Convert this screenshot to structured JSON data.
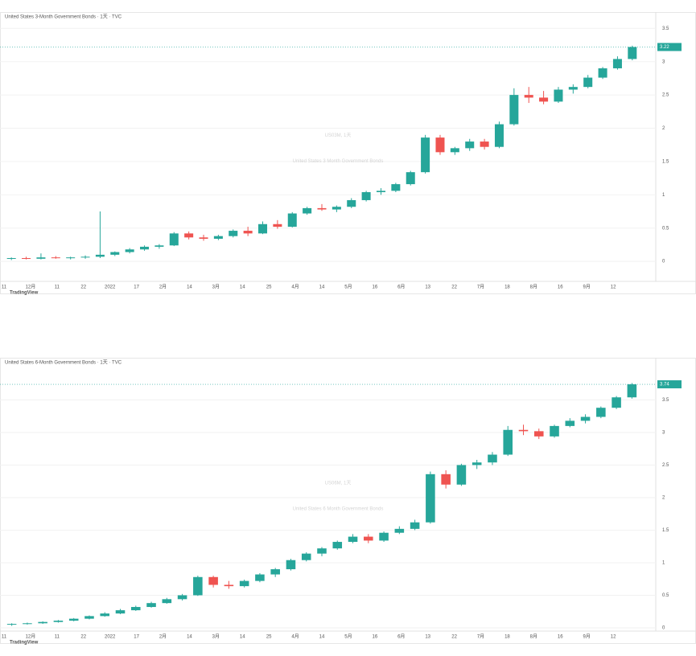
{
  "chart_data": [
    {
      "type": "candlestick",
      "title": "US03M, 1天",
      "subtitle": "United States 3 Month Government Bonds",
      "legend": "United States 3-Month Government Bonds · 1天 · TVC",
      "up_color": "#26a69a",
      "down_color": "#ef5350",
      "ylim": [
        -0.3,
        3.6
      ],
      "yticks": [
        0,
        0.5,
        1,
        1.5,
        2,
        2.5,
        3,
        3.5
      ],
      "x_labels": [
        "11",
        "12月",
        "11",
        "22",
        "2022",
        "17",
        "2月",
        "14",
        "3月",
        "14",
        "25",
        "4月",
        "14",
        "5月",
        "16",
        "6月",
        "13",
        "22",
        "7月",
        "18",
        "8月",
        "16",
        "9月",
        "12"
      ],
      "ohlc": [
        [
          0.04,
          0.06,
          0.02,
          0.05
        ],
        [
          0.05,
          0.07,
          0.03,
          0.04
        ],
        [
          0.04,
          0.12,
          0.03,
          0.06
        ],
        [
          0.06,
          0.08,
          0.04,
          0.05
        ],
        [
          0.05,
          0.07,
          0.03,
          0.06
        ],
        [
          0.06,
          0.09,
          0.04,
          0.07
        ],
        [
          0.07,
          0.75,
          0.05,
          0.1
        ],
        [
          0.1,
          0.15,
          0.08,
          0.14
        ],
        [
          0.14,
          0.2,
          0.12,
          0.18
        ],
        [
          0.18,
          0.24,
          0.16,
          0.22
        ],
        [
          0.22,
          0.26,
          0.19,
          0.24
        ],
        [
          0.24,
          0.44,
          0.23,
          0.42
        ],
        [
          0.42,
          0.45,
          0.33,
          0.36
        ],
        [
          0.36,
          0.4,
          0.31,
          0.34
        ],
        [
          0.34,
          0.4,
          0.32,
          0.38
        ],
        [
          0.38,
          0.48,
          0.36,
          0.46
        ],
        [
          0.46,
          0.52,
          0.38,
          0.42
        ],
        [
          0.42,
          0.6,
          0.41,
          0.56
        ],
        [
          0.56,
          0.62,
          0.49,
          0.52
        ],
        [
          0.52,
          0.74,
          0.51,
          0.72
        ],
        [
          0.72,
          0.82,
          0.7,
          0.8
        ],
        [
          0.8,
          0.86,
          0.76,
          0.78
        ],
        [
          0.78,
          0.84,
          0.74,
          0.82
        ],
        [
          0.82,
          0.95,
          0.8,
          0.92
        ],
        [
          0.92,
          1.06,
          0.9,
          1.04
        ],
        [
          1.04,
          1.1,
          1.0,
          1.06
        ],
        [
          1.06,
          1.18,
          1.04,
          1.16
        ],
        [
          1.16,
          1.36,
          1.14,
          1.34
        ],
        [
          1.34,
          1.9,
          1.32,
          1.86
        ],
        [
          1.86,
          1.9,
          1.6,
          1.64
        ],
        [
          1.64,
          1.72,
          1.6,
          1.7
        ],
        [
          1.7,
          1.84,
          1.66,
          1.8
        ],
        [
          1.8,
          1.84,
          1.68,
          1.72
        ],
        [
          1.72,
          2.1,
          1.7,
          2.06
        ],
        [
          2.06,
          2.6,
          2.04,
          2.5
        ],
        [
          2.5,
          2.62,
          2.38,
          2.46
        ],
        [
          2.46,
          2.56,
          2.36,
          2.4
        ],
        [
          2.4,
          2.62,
          2.38,
          2.58
        ],
        [
          2.58,
          2.66,
          2.52,
          2.62
        ],
        [
          2.62,
          2.8,
          2.6,
          2.76
        ],
        [
          2.76,
          2.92,
          2.74,
          2.9
        ],
        [
          2.9,
          3.08,
          2.88,
          3.04
        ],
        [
          3.04,
          3.24,
          3.02,
          3.22
        ]
      ],
      "brand": "TradingView"
    },
    {
      "type": "candlestick",
      "title": "US06M, 1天",
      "subtitle": "United States 6 Month Government Bonds",
      "legend": "United States 6-Month Government Bonds · 1天 · TVC",
      "up_color": "#26a69a",
      "down_color": "#ef5350",
      "ylim": [
        -0.05,
        4.0
      ],
      "yticks": [
        0,
        0.5,
        1,
        1.5,
        2,
        2.5,
        3,
        3.5
      ],
      "x_labels": [
        "11",
        "12月",
        "11",
        "22",
        "2022",
        "17",
        "2月",
        "14",
        "3月",
        "14",
        "25",
        "4月",
        "14",
        "5月",
        "16",
        "6月",
        "13",
        "22",
        "7月",
        "18",
        "8月",
        "16",
        "9月",
        "12"
      ],
      "ohlc": [
        [
          0.05,
          0.07,
          0.03,
          0.06
        ],
        [
          0.06,
          0.08,
          0.05,
          0.07
        ],
        [
          0.07,
          0.1,
          0.06,
          0.09
        ],
        [
          0.09,
          0.12,
          0.08,
          0.11
        ],
        [
          0.11,
          0.15,
          0.1,
          0.14
        ],
        [
          0.14,
          0.19,
          0.13,
          0.18
        ],
        [
          0.18,
          0.24,
          0.17,
          0.22
        ],
        [
          0.22,
          0.29,
          0.21,
          0.27
        ],
        [
          0.27,
          0.34,
          0.26,
          0.32
        ],
        [
          0.32,
          0.4,
          0.31,
          0.38
        ],
        [
          0.38,
          0.46,
          0.37,
          0.44
        ],
        [
          0.44,
          0.52,
          0.42,
          0.5
        ],
        [
          0.5,
          0.8,
          0.49,
          0.78
        ],
        [
          0.78,
          0.8,
          0.62,
          0.66
        ],
        [
          0.66,
          0.72,
          0.6,
          0.64
        ],
        [
          0.64,
          0.74,
          0.62,
          0.72
        ],
        [
          0.72,
          0.84,
          0.7,
          0.82
        ],
        [
          0.82,
          0.92,
          0.78,
          0.9
        ],
        [
          0.9,
          1.06,
          0.88,
          1.04
        ],
        [
          1.04,
          1.16,
          1.02,
          1.14
        ],
        [
          1.14,
          1.24,
          1.1,
          1.22
        ],
        [
          1.22,
          1.34,
          1.2,
          1.32
        ],
        [
          1.32,
          1.44,
          1.3,
          1.4
        ],
        [
          1.4,
          1.44,
          1.3,
          1.34
        ],
        [
          1.34,
          1.48,
          1.32,
          1.46
        ],
        [
          1.46,
          1.56,
          1.44,
          1.52
        ],
        [
          1.52,
          1.66,
          1.5,
          1.62
        ],
        [
          1.62,
          2.4,
          1.6,
          2.36
        ],
        [
          2.36,
          2.42,
          2.14,
          2.2
        ],
        [
          2.2,
          2.52,
          2.18,
          2.5
        ],
        [
          2.5,
          2.58,
          2.44,
          2.54
        ],
        [
          2.54,
          2.7,
          2.5,
          2.66
        ],
        [
          2.66,
          3.1,
          2.64,
          3.04
        ],
        [
          3.04,
          3.12,
          2.96,
          3.02
        ],
        [
          3.02,
          3.06,
          2.9,
          2.94
        ],
        [
          2.94,
          3.12,
          2.92,
          3.1
        ],
        [
          3.1,
          3.22,
          3.08,
          3.18
        ],
        [
          3.18,
          3.28,
          3.14,
          3.24
        ],
        [
          3.24,
          3.4,
          3.22,
          3.38
        ],
        [
          3.38,
          3.56,
          3.36,
          3.54
        ],
        [
          3.54,
          3.76,
          3.52,
          3.74
        ]
      ],
      "brand": "TradingView"
    }
  ]
}
